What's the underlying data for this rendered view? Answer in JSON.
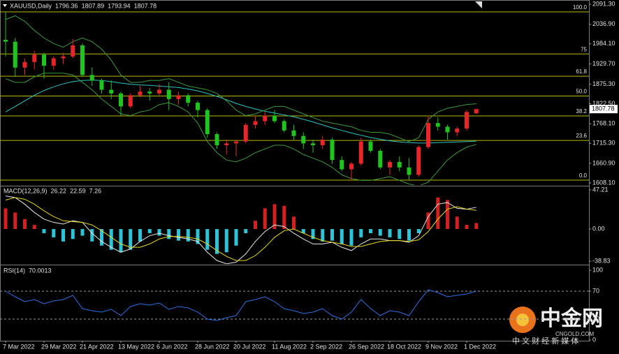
{
  "chart_data": [
    {
      "type": "candlestick",
      "title": "XAUUSD,Daily",
      "categories": [
        "7 Mar 2022",
        null,
        null,
        null,
        "29 Mar 2022",
        null,
        null,
        null,
        "21 Apr 2022",
        null,
        null,
        null,
        "13 May 2022",
        null,
        null,
        null,
        "6 Jun 2022",
        null,
        null,
        null,
        "28 Jun 2022",
        null,
        null,
        null,
        "20 Jul 2022",
        null,
        null,
        null,
        "11 Aug 2022",
        null,
        null,
        null,
        "2 Sep 2022",
        null,
        null,
        null,
        "26 Sep 2022",
        null,
        null,
        null,
        "18 Oct 2022",
        null,
        null,
        null,
        "9 Nov 2022",
        null,
        null,
        null,
        "1 Dec 2022",
        null
      ],
      "ohlc": [
        [
          1995,
          2070,
          1950,
          1990
        ],
        [
          1990,
          2000,
          1895,
          1920
        ],
        [
          1920,
          1945,
          1900,
          1935
        ],
        [
          1935,
          1965,
          1915,
          1955
        ],
        [
          1955,
          1960,
          1890,
          1925
        ],
        [
          1925,
          1950,
          1915,
          1945
        ],
        [
          1945,
          1960,
          1930,
          1950
        ],
        [
          1950,
          1998,
          1945,
          1980
        ],
        [
          1980,
          1985,
          1895,
          1900
        ],
        [
          1900,
          1920,
          1870,
          1885
        ],
        [
          1885,
          1890,
          1850,
          1860
        ],
        [
          1860,
          1885,
          1835,
          1850
        ],
        [
          1850,
          1855,
          1790,
          1815
        ],
        [
          1815,
          1850,
          1810,
          1845
        ],
        [
          1845,
          1870,
          1840,
          1855
        ],
        [
          1855,
          1865,
          1830,
          1850
        ],
        [
          1850,
          1875,
          1845,
          1860
        ],
        [
          1860,
          1880,
          1805,
          1835
        ],
        [
          1835,
          1855,
          1820,
          1845
        ],
        [
          1845,
          1850,
          1815,
          1825
        ],
        [
          1825,
          1830,
          1785,
          1805
        ],
        [
          1805,
          1810,
          1730,
          1740
        ],
        [
          1740,
          1745,
          1700,
          1710
        ],
        [
          1710,
          1725,
          1685,
          1715
        ],
        [
          1715,
          1725,
          1680,
          1720
        ],
        [
          1720,
          1770,
          1715,
          1765
        ],
        [
          1765,
          1790,
          1755,
          1775
        ],
        [
          1775,
          1800,
          1765,
          1790
        ],
        [
          1790,
          1805,
          1770,
          1775
        ],
        [
          1775,
          1780,
          1745,
          1750
        ],
        [
          1750,
          1765,
          1725,
          1735
        ],
        [
          1735,
          1745,
          1700,
          1715
        ],
        [
          1715,
          1725,
          1690,
          1710
        ],
        [
          1710,
          1735,
          1700,
          1725
        ],
        [
          1725,
          1730,
          1660,
          1670
        ],
        [
          1670,
          1680,
          1640,
          1645
        ],
        [
          1645,
          1665,
          1615,
          1660
        ],
        [
          1660,
          1730,
          1655,
          1720
        ],
        [
          1720,
          1725,
          1690,
          1695
        ],
        [
          1695,
          1700,
          1645,
          1650
        ],
        [
          1650,
          1670,
          1630,
          1665
        ],
        [
          1665,
          1680,
          1640,
          1650
        ],
        [
          1650,
          1675,
          1615,
          1630
        ],
        [
          1630,
          1710,
          1625,
          1705
        ],
        [
          1705,
          1790,
          1700,
          1770
        ],
        [
          1770,
          1785,
          1750,
          1760
        ],
        [
          1760,
          1765,
          1725,
          1745
        ],
        [
          1745,
          1760,
          1735,
          1755
        ],
        [
          1755,
          1805,
          1750,
          1800
        ],
        [
          1796.36,
          1807.89,
          1793.94,
          1807.78
        ]
      ],
      "up_color": "#e8262a",
      "down_color": "#1fc41f",
      "series": [
        {
          "color": "#2ec4c4",
          "values": [
            1800,
            1815,
            1830,
            1845,
            1858,
            1868,
            1876,
            1882,
            1885,
            1886,
            1885,
            1882,
            1878,
            1875,
            1873,
            1872,
            1870,
            1868,
            1866,
            1862,
            1857,
            1850,
            1842,
            1833,
            1823,
            1815,
            1808,
            1802,
            1797,
            1792,
            1787,
            1780,
            1773,
            1765,
            1757,
            1750,
            1743,
            1737,
            1731,
            1726,
            1722,
            1719,
            1717,
            1716,
            1716,
            1717,
            1718,
            1719,
            1720,
            1721
          ]
        },
        {
          "color": "#3a9a3a",
          "values": [
            2050,
            2060,
            2045,
            2020,
            2000,
            1985,
            1975,
            1990,
            2000,
            1990,
            1970,
            1940,
            1900,
            1880,
            1880,
            1885,
            1885,
            1890,
            1880,
            1870,
            1865,
            1860,
            1850,
            1830,
            1805,
            1790,
            1795,
            1805,
            1815,
            1815,
            1805,
            1795,
            1785,
            1775,
            1770,
            1765,
            1760,
            1750,
            1745,
            1745,
            1740,
            1730,
            1720,
            1730,
            1780,
            1800,
            1810,
            1815,
            1820,
            1822
          ]
        },
        {
          "color": "#3a9a3a",
          "values": [
            1890,
            1880,
            1880,
            1895,
            1905,
            1905,
            1905,
            1900,
            1880,
            1860,
            1835,
            1815,
            1795,
            1790,
            1800,
            1805,
            1820,
            1825,
            1815,
            1800,
            1770,
            1720,
            1690,
            1670,
            1665,
            1675,
            1690,
            1700,
            1710,
            1710,
            1700,
            1685,
            1675,
            1665,
            1650,
            1630,
            1620,
            1615,
            1615,
            1620,
            1625,
            1615,
            1605,
            1600,
            1610,
            1640,
            1670,
            1690,
            1705,
            1712
          ]
        }
      ],
      "levels": [
        {
          "label": "100.0",
          "value": 2070.5
        },
        {
          "label": "75",
          "value": 1956.8
        },
        {
          "label": "61.8",
          "value": 1896.7
        },
        {
          "label": "50.0",
          "value": 1843.0
        },
        {
          "label": "38.2",
          "value": 1789.4
        },
        {
          "label": "23.6",
          "value": 1723.0
        },
        {
          "label": "0.0",
          "value": 1615.6
        }
      ],
      "level_color": "#b8b800",
      "ylim": [
        1602.4,
        2098.9
      ],
      "yticks": [
        {
          "value": 2091.3,
          "label": "2091.30"
        },
        {
          "value": 2036.9,
          "label": "2036.90"
        },
        {
          "value": 1984.1,
          "label": "1984.10"
        },
        {
          "value": 1929.7,
          "label": "1929.70"
        },
        {
          "value": 1875.3,
          "label": "1875.30"
        },
        {
          "value": 1822.5,
          "label": "1822.50"
        },
        {
          "value": 1768.1,
          "label": "1768.10"
        },
        {
          "value": 1715.3,
          "label": "1715.30"
        },
        {
          "value": 1660.9,
          "label": "1660.90"
        },
        {
          "value": 1608.1,
          "label": "1608.10"
        }
      ]
    },
    {
      "type": "macd",
      "title": "MACD(12,26,9)",
      "histogram": {
        "up_color": "#d42020",
        "down_color": "#2ec4d8",
        "values": [
          25,
          20,
          12,
          5,
          -5,
          -10,
          -15,
          -12,
          -8,
          -15,
          -20,
          -25,
          -28,
          -25,
          -15,
          -5,
          -8,
          -12,
          -14,
          -15,
          -18,
          -25,
          -30,
          -28,
          -20,
          -5,
          10,
          25,
          30,
          28,
          15,
          -5,
          -12,
          -15,
          -14,
          -18,
          -20,
          -10,
          -5,
          -8,
          -10,
          -12,
          -14,
          -5,
          20,
          38,
          35,
          15,
          5,
          7.26
        ]
      },
      "series": [
        {
          "color": "#e8e8e8",
          "values": [
            40,
            38,
            30,
            20,
            12,
            8,
            6,
            10,
            8,
            -5,
            -15,
            -22,
            -28,
            -24,
            -15,
            -8,
            -5,
            -8,
            -10,
            -12,
            -15,
            -28,
            -38,
            -42,
            -40,
            -30,
            -15,
            -3,
            5,
            3,
            -5,
            -12,
            -18,
            -18,
            -16,
            -22,
            -26,
            -18,
            -12,
            -12,
            -14,
            -14,
            -16,
            -8,
            15,
            30,
            32,
            25,
            24,
            26.22
          ]
        },
        {
          "color": "#e8d820",
          "values": [
            35,
            38,
            36,
            30,
            22,
            15,
            10,
            9,
            8,
            5,
            -2,
            -10,
            -18,
            -22,
            -22,
            -18,
            -12,
            -9,
            -9,
            -10,
            -12,
            -18,
            -26,
            -33,
            -38,
            -38,
            -32,
            -22,
            -10,
            -2,
            0,
            -5,
            -10,
            -14,
            -16,
            -18,
            -21,
            -21,
            -18,
            -15,
            -14,
            -14,
            -15,
            -13,
            -3,
            12,
            24,
            27,
            24,
            22.59
          ]
        }
      ],
      "ylim": [
        -42.1,
        50.6
      ],
      "yticks": [
        47.21,
        {
          "value": 0,
          "label": "0.00"
        },
        -38.83
      ]
    },
    {
      "type": "rsi",
      "title": "RSI(14)",
      "series": [
        {
          "color": "#2f6fe0",
          "values": [
            70,
            62,
            55,
            58,
            52,
            56,
            58,
            64,
            45,
            42,
            40,
            44,
            35,
            48,
            52,
            50,
            53,
            44,
            48,
            46,
            40,
            30,
            28,
            32,
            35,
            55,
            58,
            62,
            55,
            45,
            42,
            38,
            40,
            45,
            35,
            30,
            40,
            58,
            45,
            35,
            42,
            40,
            35,
            55,
            72,
            68,
            62,
            64,
            66,
            70.0013
          ]
        }
      ],
      "levels": [
        70,
        30
      ],
      "ylim": [
        0,
        105
      ],
      "yticks": [
        100,
        70,
        30,
        0
      ]
    }
  ],
  "watermark": {
    "logo": "中金网",
    "site": "CNGOLD.COM",
    "slogan": "中 文 财 经 新 媒 体"
  }
}
